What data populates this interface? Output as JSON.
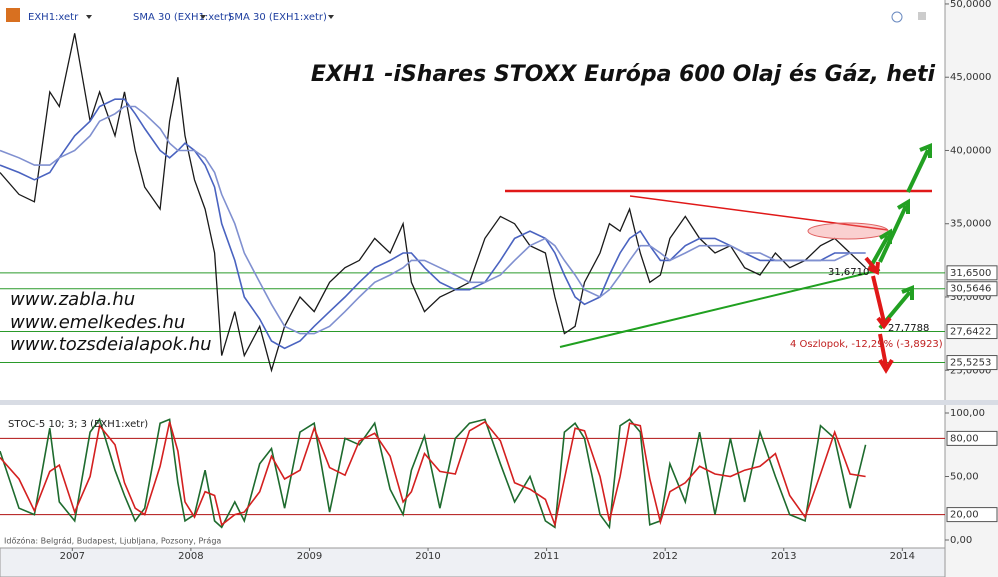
{
  "chart_data": [
    {
      "type": "line",
      "title": "EXH1 -iShares STOXX Európa 600 Olaj és Gáz, heti",
      "x": [
        2006.89,
        2007.05,
        2007.18,
        2007.31,
        2007.39,
        2007.52,
        2007.65,
        2007.73,
        2007.86,
        2007.94,
        2008.03,
        2008.11,
        2008.24,
        2008.32,
        2008.39,
        2008.45,
        2008.53,
        2008.62,
        2008.7,
        2008.76,
        2008.87,
        2008.95,
        2009.08,
        2009.18,
        2009.29,
        2009.42,
        2009.54,
        2009.67,
        2009.8,
        2009.92,
        2010.05,
        2010.18,
        2010.29,
        2010.36,
        2010.47,
        2010.6,
        2010.73,
        2010.85,
        2010.98,
        2011.11,
        2011.23,
        2011.36,
        2011.49,
        2011.57,
        2011.65,
        2011.74,
        2011.82,
        2011.95,
        2012.03,
        2012.12,
        2012.2,
        2012.29,
        2012.37,
        2012.46,
        2012.54,
        2012.67,
        2012.79,
        2012.92,
        2013.05,
        2013.17,
        2013.3,
        2013.43,
        2013.55,
        2013.68,
        2013.81,
        2013.93,
        2014.06,
        2014.19
      ],
      "series": [
        {
          "name": "EXH1:xetr",
          "color": "#1a1a1a",
          "values": [
            38.5,
            37,
            36.5,
            44,
            43,
            48,
            42,
            44,
            41,
            44,
            40,
            37.5,
            36,
            42,
            45,
            41,
            38,
            36,
            33,
            26,
            29,
            26,
            28,
            25,
            28,
            30,
            29,
            31,
            32,
            32.5,
            34,
            33,
            35,
            31,
            29,
            30,
            30.5,
            31,
            34,
            35.5,
            35,
            33.5,
            33,
            30,
            27.5,
            28,
            31,
            33,
            35,
            34.5,
            36,
            33,
            31,
            31.5,
            34,
            35.5,
            34,
            33,
            33.5,
            32,
            31.5,
            33,
            32,
            32.5,
            33.5,
            34,
            33,
            32
          ]
        },
        {
          "name": "SMA 30 (EXH1:xetr)",
          "color": "#4a63c0",
          "values": [
            39,
            38.5,
            38,
            38.5,
            39.5,
            41,
            42,
            43,
            43.5,
            43.5,
            42.5,
            41.5,
            40,
            39.5,
            40,
            40.5,
            40,
            39,
            37.5,
            35,
            32.5,
            30,
            28.5,
            27,
            26.5,
            27,
            28,
            29,
            30,
            31,
            32,
            32.5,
            33,
            33,
            32,
            31,
            30.5,
            30.5,
            31,
            32.5,
            34,
            34.5,
            34,
            33,
            31.5,
            30,
            29.5,
            30,
            31.5,
            33,
            34,
            34.5,
            33.5,
            32.5,
            32.5,
            33.5,
            34,
            34,
            33.5,
            33,
            32.5,
            32.5,
            32.5,
            32.5,
            32.5,
            33,
            33,
            33
          ]
        },
        {
          "name": "SMA 30 (EXH1:xetr)",
          "color": "#8090d0",
          "values": [
            40,
            39.5,
            39,
            39,
            39.5,
            40,
            41,
            42,
            42.5,
            43,
            43,
            42.5,
            41.5,
            40.5,
            40,
            40,
            40,
            39.5,
            38.5,
            37,
            35,
            33,
            31,
            29.5,
            28,
            27.5,
            27.5,
            28,
            29,
            30,
            31,
            31.5,
            32,
            32.5,
            32.5,
            32,
            31.5,
            31,
            31,
            31.5,
            32.5,
            33.5,
            34,
            33.5,
            32.5,
            31.5,
            30.5,
            30,
            30.5,
            31.5,
            32.5,
            33.5,
            33.5,
            33,
            32.5,
            33,
            33.5,
            33.5,
            33.5,
            33,
            33,
            32.5,
            32.5,
            32.5,
            32.5,
            32.5,
            33,
            33
          ]
        }
      ],
      "xlim": [
        2006.89,
        2014.86
      ],
      "ylim": [
        22.97,
        50.27
      ],
      "yticks": [
        {
          "value": 50,
          "label": "50,0000"
        },
        {
          "value": 45,
          "label": "45,0000"
        },
        {
          "value": 40,
          "label": "40,0000"
        },
        {
          "value": 35,
          "label": "35,0000"
        },
        {
          "value": 30,
          "label": "30,0000"
        },
        {
          "value": 25,
          "label": "25,0000"
        }
      ],
      "levels": [
        {
          "value": 31.65,
          "label": "31,6500"
        },
        {
          "value": 30.5646,
          "label": "30,5646"
        },
        {
          "value": 27.6422,
          "label": "27,6422"
        },
        {
          "value": 25.5253,
          "label": "25,5253"
        }
      ],
      "level_color": "#2a9a2a",
      "annotations": [
        "www.zabla.hu",
        "www.emelkedes.hu",
        "www.tozsdeialapok.hu"
      ],
      "marker_labels": [
        "31,6710",
        "27,7788",
        "4 Oszlopok, -12,29% (-3,8923)"
      ]
    },
    {
      "type": "line",
      "title": "STOC-5 10; 3; 3 (EXH1:xetr)",
      "series": [
        {
          "color": "#1e6b2e",
          "values": [
            70,
            25,
            20,
            88,
            30,
            15,
            85,
            95,
            55,
            35,
            15,
            25,
            92,
            95,
            45,
            15,
            20,
            55,
            15,
            10,
            30,
            15,
            60,
            72,
            25,
            85,
            92,
            22,
            80,
            75,
            92,
            40,
            20,
            55,
            82,
            25,
            80,
            92,
            95,
            60,
            30,
            50,
            15,
            10,
            85,
            92,
            80,
            20,
            10,
            90,
            95,
            85,
            12,
            15,
            60,
            30,
            85,
            20,
            80,
            30,
            85,
            50,
            20,
            15,
            90,
            80,
            25,
            75
          ]
        },
        {
          "color": "#d42020",
          "values": [
            65,
            48,
            23,
            54,
            59,
            22,
            50,
            90,
            75,
            45,
            25,
            20,
            58,
            93,
            70,
            30,
            18,
            38,
            35,
            12,
            20,
            22,
            38,
            66,
            48,
            55,
            88,
            57,
            51,
            78,
            84,
            66,
            30,
            38,
            68,
            54,
            52,
            86,
            93,
            78,
            45,
            40,
            32,
            12,
            48,
            88,
            86,
            50,
            15,
            50,
            92,
            90,
            48,
            14,
            38,
            45,
            58,
            52,
            50,
            55,
            58,
            68,
            35,
            18,
            52,
            85,
            52,
            50
          ]
        }
      ],
      "ylim": [
        -6.3,
        106.3
      ],
      "yticks": [
        {
          "value": 100,
          "label": "100,00"
        },
        {
          "value": 50,
          "label": "50,00"
        },
        {
          "value": 0,
          "label": "0,00"
        }
      ],
      "levels": [
        {
          "value": 80,
          "label": "80,00"
        },
        {
          "value": 20,
          "label": "20,00"
        }
      ],
      "level_color": "#b01010",
      "xticks": [
        {
          "value": 2007.5,
          "label": "2007"
        },
        {
          "value": 2008.5,
          "label": "2008"
        },
        {
          "value": 2009.5,
          "label": "2009"
        },
        {
          "value": 2010.5,
          "label": "2010"
        },
        {
          "value": 2011.5,
          "label": "2011"
        },
        {
          "value": 2012.5,
          "label": "2012"
        },
        {
          "value": 2013.5,
          "label": "2013"
        },
        {
          "value": 2014.5,
          "label": "2014"
        }
      ],
      "footnote": "Időzóna: Belgrád, Budapest, Ljubljana, Pozsony, Prága"
    }
  ]
}
